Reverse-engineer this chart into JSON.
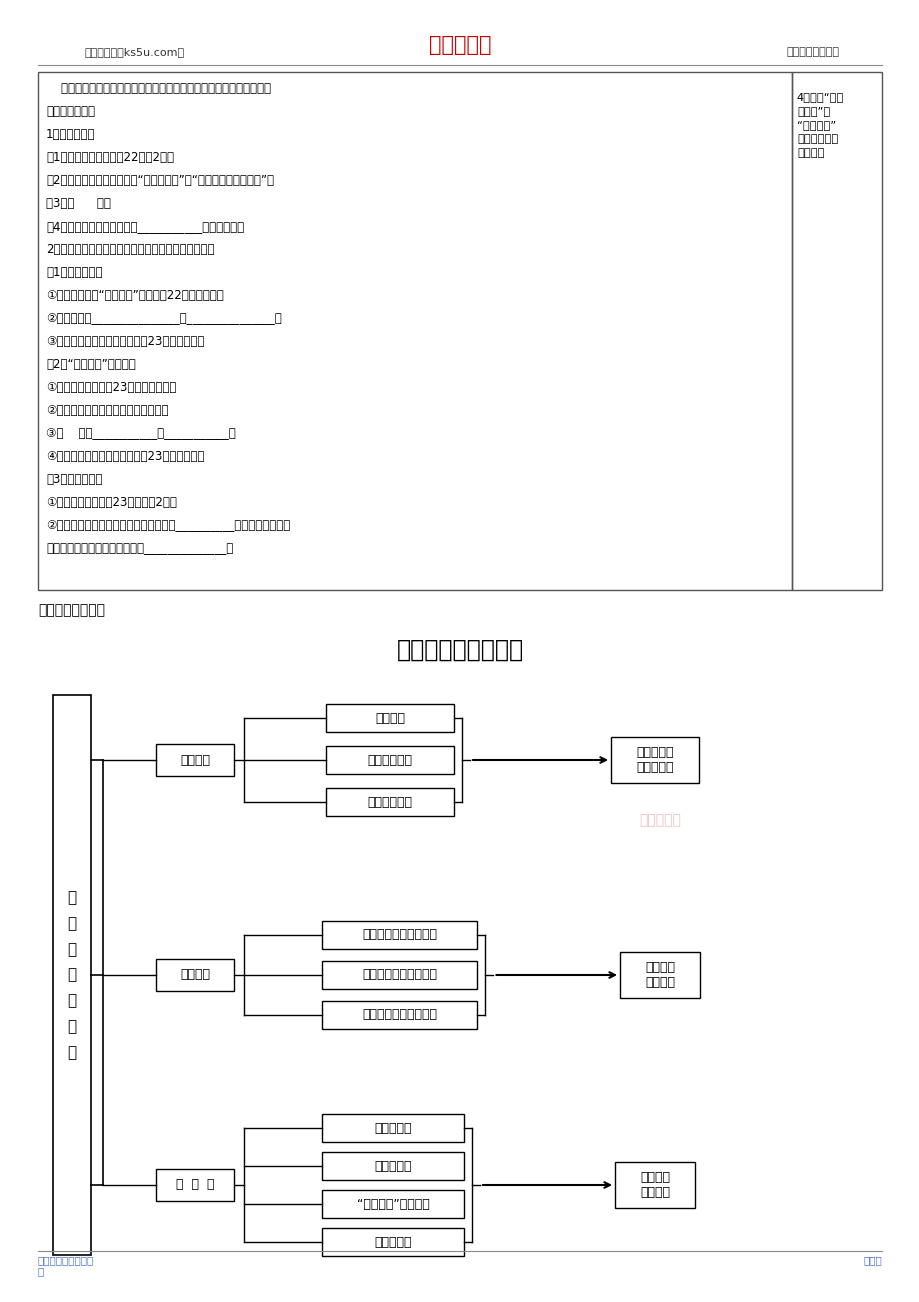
{
  "title": "哲学史上的伟大变革",
  "header_left": "高考资源网（ks5u.com）",
  "header_center": "高考资源网",
  "header_right": "您身边的高考专家",
  "footer_left": "高考资源网版权所有\n究",
  "footer_right": "侵权必",
  "header_color": "#cc0000",
  "footer_color": "#4472c4",
  "bg_color": "#ffffff",
  "text_color": "#000000",
  "watermark_color": "#e8a0a0",
  "main_label": "马\n克\n思\n主\n义\n哲\n学",
  "section1_label": "产生条件",
  "section2_label": "基本特征",
  "section3_label": "中  国  化",
  "section1_items": [
    "阶级基础",
    "自然科学基础",
    "直接理论来源"
  ],
  "section1_result": "是时代发展\n的必然产物",
  "section2_items": [
    "唯物论和辩证法的统一",
    "自然观和历史观的统一",
    "科学性和革命性的统一"
  ],
  "section2_result": "统一于实\n践为基础",
  "section3_items": [
    "毛泽东思想",
    "邓小平理论",
    "“三个代表”重要思想",
    "科学发展观"
  ],
  "section3_result": "一脉相承\n与时俣进",
  "watermark": "高考资源网",
  "table_lines": [
    "    马克思主义哲学中国化的重大理论成果：毛泽东思想、中国特色社会",
    "主义理论体系。",
    "1、毛泽东思想",
    "（1）产生条件：（教甄22页第2段）",
    "（2）主要贡献：（关键词：“研究和概括”、“理论原则和经验总结”）",
    "（3）精      髓：",
    "（4）活的灵魂：实事求是、___________、独立自主。",
    "2、中国特色社会主义理论体系（注意：是最新成果）",
    "（1）邓小平理论",
    "①主要贡献：（“两个如何”）（教甄22页最后一段）",
    "②理论主题：_______________、_______________。",
    "③哲学思想的主要内容：（教甄23页相关链接）",
    "（2）“三个代表”重要思想",
    "①产生基础：（教甄23页正文第一段）",
    "②主要贡献：（扣住回答了什么问题）",
    "③本    质：___________、___________。",
    "④集中概括为：三个代表（教甄23页相关链接）",
    "（3）科学发展观",
    "①主要贡献：（教甄23页正文第2段）",
    "②理论地位：是我国经济社会发展的重要__________，是发展中国特色",
    "社会主义必须坚持和贯彻的重大______________。"
  ],
  "side_note": "4、比较“邓小\n平理论”和\n“三个代表”\n重要思想的主\n要贡献。"
}
